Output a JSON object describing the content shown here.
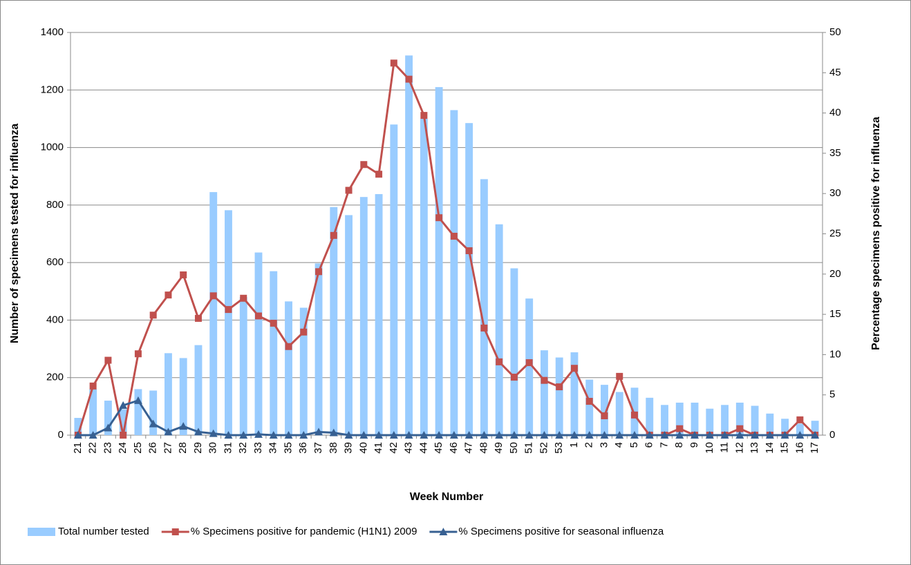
{
  "chart_data": {
    "type": "bar-line",
    "xlabel": "Week Number",
    "ylabel": "Number of specimens tested for influenza",
    "y2label": "Percentage specimens positive for influenza",
    "categories": [
      "21",
      "22",
      "23",
      "24",
      "25",
      "26",
      "27",
      "28",
      "29",
      "30",
      "31",
      "32",
      "33",
      "34",
      "35",
      "36",
      "37",
      "38",
      "39",
      "40",
      "41",
      "42",
      "43",
      "44",
      "45",
      "46",
      "47",
      "48",
      "49",
      "50",
      "51",
      "52",
      "53",
      "1",
      "2",
      "3",
      "4",
      "5",
      "6",
      "7",
      "8",
      "9",
      "10",
      "11",
      "12",
      "13",
      "14",
      "15",
      "16",
      "17"
    ],
    "ylim": [
      0,
      1400
    ],
    "yticks": [
      0,
      200,
      400,
      600,
      800,
      1000,
      1200,
      1400
    ],
    "y2lim": [
      0,
      50
    ],
    "y2ticks": [
      0,
      5,
      10,
      15,
      20,
      25,
      30,
      35,
      40,
      45,
      50
    ],
    "grid": true,
    "legend": "bottom",
    "series": [
      {
        "name": "Total number tested",
        "kind": "bar",
        "color": "#99ccff",
        "values": [
          60,
          160,
          120,
          90,
          160,
          155,
          285,
          268,
          313,
          845,
          782,
          480,
          635,
          570,
          465,
          443,
          597,
          793,
          765,
          828,
          838,
          1080,
          1320,
          1100,
          1210,
          1130,
          1085,
          890,
          733,
          580,
          475,
          295,
          270,
          288,
          193,
          175,
          150,
          165,
          130,
          105,
          113,
          113,
          92,
          105,
          113,
          102,
          75,
          57,
          40,
          50
        ]
      },
      {
        "name": "% Specimens positive for pandemic (H1N1) 2009",
        "kind": "line",
        "marker": "square",
        "axis": "y2",
        "color": "#c0504d",
        "values": [
          0,
          6.1,
          9.3,
          0,
          10.1,
          14.9,
          17.4,
          19.9,
          14.5,
          17.3,
          15.6,
          17,
          14.8,
          13.9,
          11,
          12.8,
          20.3,
          24.8,
          30.4,
          33.6,
          32.4,
          46.2,
          44.2,
          39.7,
          27,
          24.7,
          22.9,
          13.3,
          9.1,
          7.2,
          9,
          6.8,
          6,
          8.3,
          4.2,
          2.4,
          7.3,
          2.5,
          0,
          0,
          0.8,
          0,
          0,
          0,
          0.8,
          0,
          0,
          0,
          1.9,
          0
        ]
      },
      {
        "name": "% Specimens positive for seasonal influenza",
        "kind": "line",
        "marker": "triangle",
        "axis": "y2",
        "color": "#376092",
        "values": [
          0,
          0,
          0.9,
          3.7,
          4.3,
          1.4,
          0.4,
          1.1,
          0.4,
          0.2,
          0,
          0,
          0.1,
          0,
          0,
          0,
          0.4,
          0.3,
          0,
          0,
          0,
          0,
          0,
          0,
          0,
          0,
          0,
          0,
          0,
          0,
          0,
          0,
          0,
          0,
          0,
          0,
          0,
          0,
          0,
          0,
          0,
          0,
          0,
          0,
          0,
          0,
          0,
          0,
          0,
          0
        ]
      }
    ]
  }
}
